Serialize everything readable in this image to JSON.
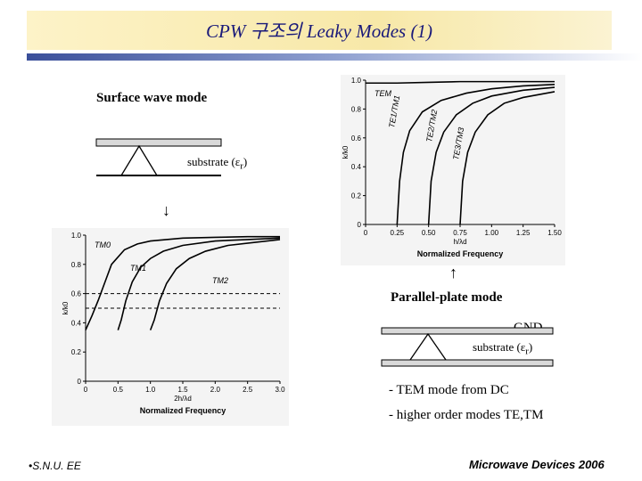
{
  "slide": {
    "title": "CPW 구조의 Leaky Modes (1)",
    "footer_left": "•S.N.U. EE",
    "footer_right": "Microwave Devices 2006"
  },
  "surface_wave": {
    "heading": "Surface wave mode",
    "substrate_label": "substrate (ε",
    "substrate_sub": "r",
    "substrate_close": ")",
    "arrow": "↓"
  },
  "parallel_plate": {
    "heading": "Parallel-plate mode",
    "gnd_label": "GND",
    "substrate_label": "substrate (ε",
    "substrate_sub": "r",
    "substrate_close": ")",
    "arrow": "↑",
    "bullets": [
      "- TEM mode from DC",
      "- higher order modes TE,TM"
    ]
  },
  "chart_data": [
    {
      "type": "line",
      "title": "",
      "xlabel": "h/λd",
      "ylabel": "k/k0",
      "caption": "Normalized Frequency",
      "xlim": [
        0,
        1.5
      ],
      "ylim": [
        0,
        1.0
      ],
      "xticks": [
        "0",
        "0.25",
        "0.50",
        "0.75",
        "1.00",
        "1.25",
        "1.50"
      ],
      "yticks": [
        "0",
        "0.2",
        "0.4",
        "0.6",
        "0.8",
        "1.0"
      ],
      "series": [
        {
          "name": "TEM",
          "x": [
            0,
            0.25,
            0.5,
            0.75,
            1.0,
            1.25,
            1.5
          ],
          "y": [
            0.98,
            0.98,
            0.985,
            0.99,
            0.99,
            0.99,
            0.99
          ]
        },
        {
          "name": "TE1/TM1",
          "x": [
            0.25,
            0.27,
            0.3,
            0.35,
            0.45,
            0.6,
            0.8,
            1.0,
            1.25,
            1.5
          ],
          "y": [
            0,
            0.3,
            0.5,
            0.65,
            0.78,
            0.86,
            0.91,
            0.94,
            0.96,
            0.97
          ]
        },
        {
          "name": "TE2/TM2",
          "x": [
            0.5,
            0.52,
            0.56,
            0.62,
            0.72,
            0.85,
            1.0,
            1.25,
            1.5
          ],
          "y": [
            0,
            0.3,
            0.5,
            0.64,
            0.76,
            0.84,
            0.89,
            0.93,
            0.95
          ]
        },
        {
          "name": "TE3/TM3",
          "x": [
            0.75,
            0.77,
            0.81,
            0.87,
            0.97,
            1.1,
            1.25,
            1.5
          ],
          "y": [
            0,
            0.3,
            0.5,
            0.64,
            0.76,
            0.84,
            0.88,
            0.92
          ]
        }
      ]
    },
    {
      "type": "line",
      "title": "",
      "xlabel": "2h/λd",
      "ylabel": "k/k0",
      "caption": "Normalized Frequency",
      "xlim": [
        0,
        3.0
      ],
      "ylim": [
        0,
        1.0
      ],
      "xticks": [
        "0",
        "0.5",
        "1.0",
        "1.5",
        "2.0",
        "2.5",
        "3.0"
      ],
      "yticks": [
        "0",
        "0.2",
        "0.4",
        "0.6",
        "0.8",
        "1.0"
      ],
      "reference_lines": [
        0.6,
        0.5
      ],
      "series": [
        {
          "name": "TM0",
          "x": [
            0,
            0.1,
            0.2,
            0.3,
            0.4,
            0.6,
            0.8,
            1.0,
            1.5,
            2.0,
            2.5,
            3.0
          ],
          "y": [
            0.35,
            0.45,
            0.56,
            0.68,
            0.8,
            0.9,
            0.94,
            0.96,
            0.98,
            0.985,
            0.99,
            0.99
          ]
        },
        {
          "name": "TM1",
          "x": [
            0.5,
            0.55,
            0.62,
            0.72,
            0.85,
            1.0,
            1.2,
            1.5,
            2.0,
            2.5,
            3.0
          ],
          "y": [
            0.35,
            0.42,
            0.55,
            0.68,
            0.78,
            0.84,
            0.89,
            0.93,
            0.96,
            0.97,
            0.98
          ]
        },
        {
          "name": "TM2",
          "x": [
            1.0,
            1.06,
            1.14,
            1.25,
            1.4,
            1.6,
            1.85,
            2.2,
            2.6,
            3.0
          ],
          "y": [
            0.35,
            0.42,
            0.55,
            0.67,
            0.77,
            0.84,
            0.89,
            0.93,
            0.95,
            0.97
          ]
        }
      ]
    }
  ]
}
